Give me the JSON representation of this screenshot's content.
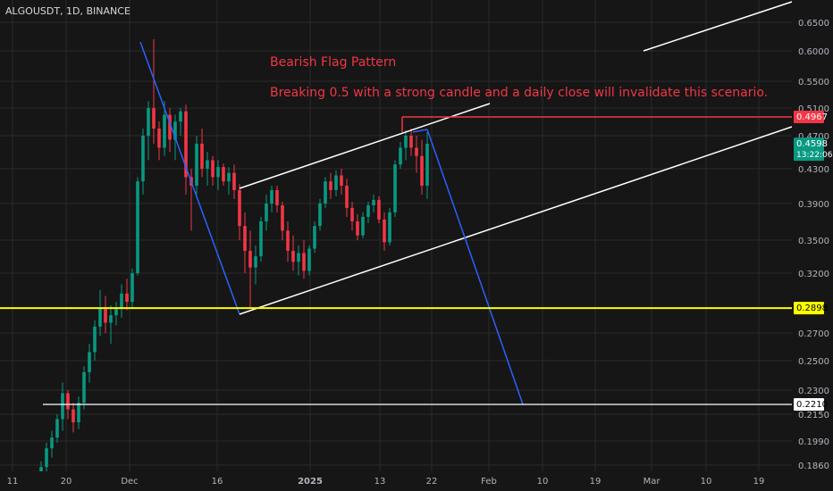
{
  "symbol_label": "ALGOUSDT, 1D, BINANCE",
  "annotations": {
    "title": "Bearish Flag Pattern",
    "note": "Breaking 0.5 with a strong candle and a daily close will invalidate this scenario."
  },
  "colors": {
    "background": "#161616",
    "grid": "#2a2a2a",
    "up": "#089981",
    "down": "#f23645",
    "channel": "#ffffff",
    "projection": "#2962ff",
    "support": "#ffff00",
    "resistance": "#f23645",
    "target": "#ffffff"
  },
  "chart_data": {
    "type": "candlestick",
    "y_ticks": [
      "0.6500",
      "0.6000",
      "0.5500",
      "0.5100",
      "0.4700",
      "0.4300",
      "0.3900",
      "0.3500",
      "0.3200",
      "0.2700",
      "0.2500",
      "0.2300",
      "0.2150",
      "0.1990",
      "0.1860"
    ],
    "x_ticks": [
      "11",
      "20",
      "Dec",
      "16",
      "2025",
      "13",
      "22",
      "Feb",
      "10",
      "19",
      "Mar",
      "10",
      "19"
    ],
    "price_badges": [
      {
        "label": "0.4967",
        "kind": "resistance"
      },
      {
        "label": "0.4598",
        "sub": "13:22:06",
        "kind": "last"
      },
      {
        "label": "0.2898",
        "kind": "support"
      },
      {
        "label": "0.2210",
        "kind": "target"
      }
    ],
    "levels": {
      "resistance": 0.4967,
      "last": 0.4598,
      "support": 0.2898,
      "target": 0.221
    },
    "candles": [
      [
        0.172,
        0.178,
        0.168,
        0.175
      ],
      [
        0.175,
        0.188,
        0.173,
        0.185
      ],
      [
        0.185,
        0.198,
        0.182,
        0.195
      ],
      [
        0.195,
        0.205,
        0.19,
        0.201
      ],
      [
        0.201,
        0.215,
        0.198,
        0.212
      ],
      [
        0.212,
        0.235,
        0.205,
        0.228
      ],
      [
        0.228,
        0.23,
        0.212,
        0.218
      ],
      [
        0.218,
        0.222,
        0.204,
        0.21
      ],
      [
        0.21,
        0.226,
        0.206,
        0.222
      ],
      [
        0.222,
        0.246,
        0.218,
        0.242
      ],
      [
        0.242,
        0.262,
        0.235,
        0.256
      ],
      [
        0.256,
        0.28,
        0.25,
        0.275
      ],
      [
        0.275,
        0.305,
        0.268,
        0.29
      ],
      [
        0.29,
        0.3,
        0.27,
        0.278
      ],
      [
        0.278,
        0.292,
        0.262,
        0.284
      ],
      [
        0.284,
        0.295,
        0.276,
        0.289
      ],
      [
        0.289,
        0.31,
        0.282,
        0.302
      ],
      [
        0.302,
        0.315,
        0.288,
        0.295
      ],
      [
        0.295,
        0.324,
        0.29,
        0.32
      ],
      [
        0.32,
        0.42,
        0.318,
        0.415
      ],
      [
        0.415,
        0.48,
        0.4,
        0.47
      ],
      [
        0.47,
        0.52,
        0.44,
        0.51
      ],
      [
        0.51,
        0.62,
        0.46,
        0.48
      ],
      [
        0.48,
        0.49,
        0.44,
        0.455
      ],
      [
        0.455,
        0.52,
        0.445,
        0.5
      ],
      [
        0.5,
        0.51,
        0.45,
        0.465
      ],
      [
        0.465,
        0.5,
        0.44,
        0.49
      ],
      [
        0.49,
        0.51,
        0.47,
        0.505
      ],
      [
        0.505,
        0.515,
        0.4,
        0.42
      ],
      [
        0.42,
        0.43,
        0.36,
        0.41
      ],
      [
        0.41,
        0.47,
        0.4,
        0.46
      ],
      [
        0.46,
        0.48,
        0.42,
        0.43
      ],
      [
        0.43,
        0.45,
        0.41,
        0.44
      ],
      [
        0.44,
        0.445,
        0.41,
        0.42
      ],
      [
        0.42,
        0.44,
        0.405,
        0.432
      ],
      [
        0.432,
        0.436,
        0.41,
        0.415
      ],
      [
        0.415,
        0.432,
        0.4,
        0.425
      ],
      [
        0.425,
        0.435,
        0.395,
        0.405
      ],
      [
        0.405,
        0.412,
        0.35,
        0.365
      ],
      [
        0.365,
        0.38,
        0.32,
        0.34
      ],
      [
        0.34,
        0.36,
        0.29,
        0.325
      ],
      [
        0.325,
        0.345,
        0.31,
        0.335
      ],
      [
        0.335,
        0.375,
        0.33,
        0.37
      ],
      [
        0.37,
        0.4,
        0.36,
        0.39
      ],
      [
        0.39,
        0.41,
        0.38,
        0.405
      ],
      [
        0.405,
        0.41,
        0.38,
        0.388
      ],
      [
        0.388,
        0.392,
        0.35,
        0.36
      ],
      [
        0.36,
        0.37,
        0.33,
        0.34
      ],
      [
        0.34,
        0.355,
        0.322,
        0.33
      ],
      [
        0.33,
        0.345,
        0.318,
        0.338
      ],
      [
        0.338,
        0.35,
        0.315,
        0.322
      ],
      [
        0.322,
        0.345,
        0.318,
        0.342
      ],
      [
        0.342,
        0.37,
        0.338,
        0.365
      ],
      [
        0.365,
        0.395,
        0.36,
        0.39
      ],
      [
        0.39,
        0.42,
        0.385,
        0.415
      ],
      [
        0.415,
        0.425,
        0.395,
        0.405
      ],
      [
        0.405,
        0.428,
        0.398,
        0.422
      ],
      [
        0.422,
        0.43,
        0.4,
        0.41
      ],
      [
        0.41,
        0.418,
        0.375,
        0.385
      ],
      [
        0.385,
        0.392,
        0.36,
        0.37
      ],
      [
        0.37,
        0.378,
        0.35,
        0.355
      ],
      [
        0.355,
        0.38,
        0.352,
        0.375
      ],
      [
        0.375,
        0.392,
        0.368,
        0.388
      ],
      [
        0.388,
        0.4,
        0.38,
        0.394
      ],
      [
        0.394,
        0.398,
        0.368,
        0.372
      ],
      [
        0.372,
        0.38,
        0.34,
        0.348
      ],
      [
        0.348,
        0.385,
        0.345,
        0.38
      ],
      [
        0.38,
        0.44,
        0.375,
        0.435
      ],
      [
        0.435,
        0.462,
        0.43,
        0.455
      ],
      [
        0.455,
        0.478,
        0.44,
        0.47
      ],
      [
        0.47,
        0.48,
        0.445,
        0.455
      ],
      [
        0.455,
        0.47,
        0.425,
        0.445
      ],
      [
        0.445,
        0.465,
        0.4,
        0.41
      ],
      [
        0.41,
        0.475,
        0.395,
        0.46
      ]
    ]
  }
}
